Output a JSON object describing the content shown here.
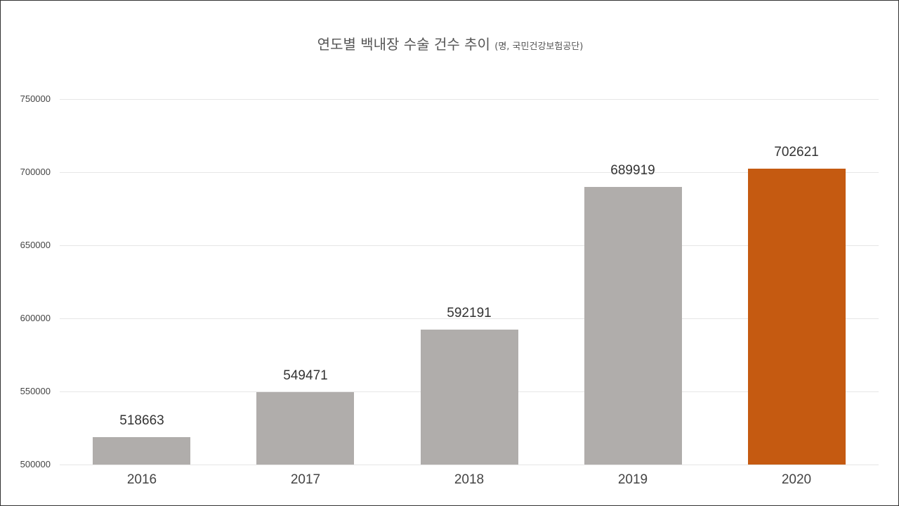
{
  "title": {
    "main": "연도별 백내장 수술 건수 추이",
    "sub": "(명, 국민건강보험공단)"
  },
  "colors": {
    "default_bar": "#b0adab",
    "highlight_bar": "#c55a11",
    "grid": "#e6e6e6"
  },
  "y_ticks": [
    "750000",
    "700000",
    "650000",
    "600000",
    "550000",
    "500000"
  ],
  "chart_data": {
    "type": "bar",
    "title": "연도별 백내장 수술 건수 추이 (명, 국민건강보험공단)",
    "categories": [
      "2016",
      "2017",
      "2018",
      "2019",
      "2020"
    ],
    "values": [
      518663,
      549471,
      592191,
      689919,
      702621
    ],
    "value_labels": [
      "518663",
      "549471",
      "592191",
      "689919",
      "702621"
    ],
    "xlabel": "",
    "ylabel": "",
    "ylim": [
      500000,
      750000
    ],
    "yticks": [
      500000,
      550000,
      600000,
      650000,
      700000,
      750000
    ],
    "grid": true,
    "legend": null,
    "highlight_index": 4
  }
}
